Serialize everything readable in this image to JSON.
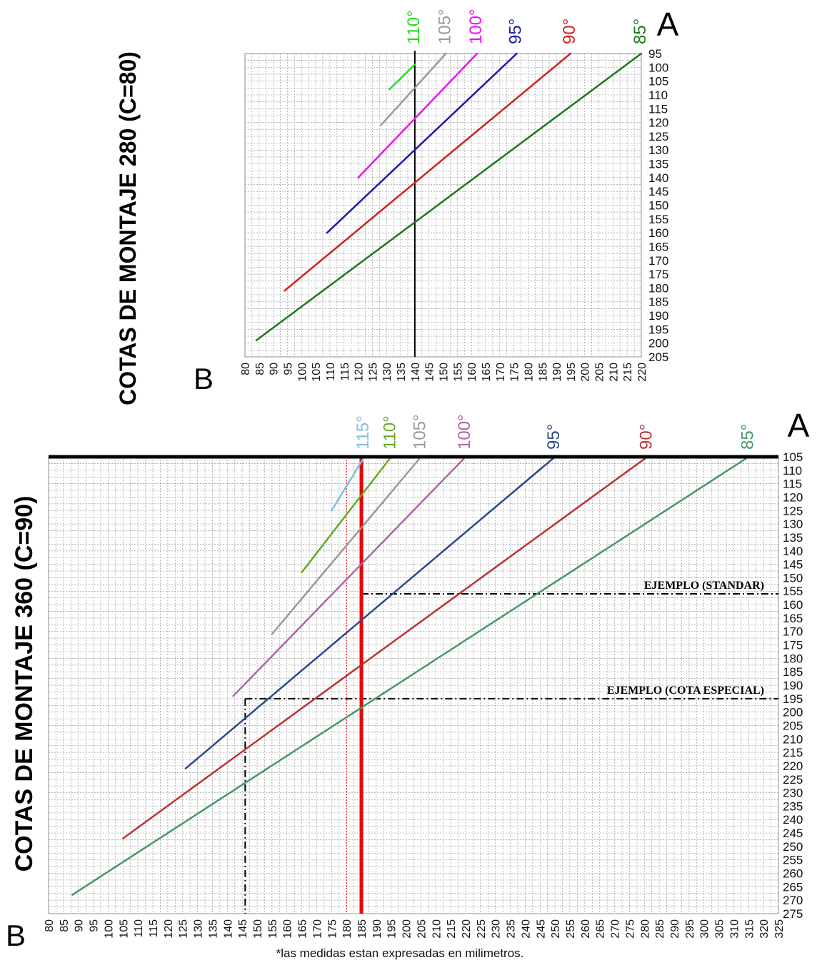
{
  "chart_data": [
    {
      "type": "line",
      "title": "COTAS DE MONTAJE 280 (C=80)",
      "xlabel": "B",
      "ylabel": "A",
      "x_ticks": [
        80,
        85,
        90,
        95,
        100,
        105,
        110,
        115,
        120,
        125,
        130,
        135,
        140,
        145,
        150,
        155,
        160,
        165,
        170,
        175,
        180,
        185,
        190,
        195,
        200,
        205,
        210,
        215,
        220
      ],
      "y_ticks": [
        95,
        100,
        105,
        110,
        115,
        120,
        125,
        130,
        135,
        140,
        145,
        150,
        155,
        160,
        165,
        170,
        175,
        180,
        185,
        190,
        195,
        200,
        205
      ],
      "xlim": [
        80,
        220
      ],
      "ylim": [
        95,
        205
      ],
      "grid": true,
      "series": [
        {
          "name": "110°",
          "color": "#22dd22",
          "x": [
            131,
            140
          ],
          "y": [
            108,
            99
          ]
        },
        {
          "name": "105°",
          "color": "#999999",
          "x": [
            128,
            151
          ],
          "y": [
            121,
            95
          ]
        },
        {
          "name": "100°",
          "color": "#ee11ee",
          "x": [
            120,
            162
          ],
          "y": [
            140,
            95
          ]
        },
        {
          "name": "95°",
          "color": "#1a1aaa",
          "x": [
            109,
            176
          ],
          "y": [
            160,
            95
          ]
        },
        {
          "name": "90°",
          "color": "#cc2222",
          "x": [
            94,
            195
          ],
          "y": [
            181,
            95
          ]
        },
        {
          "name": "85°",
          "color": "#1a7a1a",
          "x": [
            84,
            220
          ],
          "y": [
            199,
            95
          ]
        }
      ],
      "markers": [
        {
          "type": "vline",
          "x": 140,
          "color": "#000000"
        }
      ]
    },
    {
      "type": "line",
      "title": "COTAS DE MONTAJE 360 (C=90)",
      "xlabel": "B",
      "ylabel": "A",
      "x_ticks": [
        80,
        85,
        90,
        95,
        100,
        105,
        110,
        115,
        120,
        125,
        130,
        135,
        140,
        145,
        150,
        155,
        160,
        165,
        170,
        175,
        180,
        185,
        190,
        195,
        200,
        205,
        210,
        215,
        220,
        225,
        230,
        235,
        240,
        245,
        250,
        255,
        260,
        265,
        270,
        275,
        280,
        285,
        290,
        295,
        300,
        305,
        310,
        315,
        320,
        325
      ],
      "y_ticks": [
        105,
        110,
        115,
        120,
        125,
        130,
        135,
        140,
        145,
        150,
        155,
        160,
        165,
        170,
        175,
        180,
        185,
        190,
        195,
        200,
        205,
        210,
        215,
        220,
        225,
        230,
        235,
        240,
        245,
        250,
        255,
        260,
        265,
        270,
        275
      ],
      "xlim": [
        80,
        325
      ],
      "ylim": [
        105,
        275
      ],
      "grid": true,
      "series": [
        {
          "name": "115°",
          "color": "#7fbfdf",
          "x": [
            175,
            186
          ],
          "y": [
            125,
            105
          ]
        },
        {
          "name": "110°",
          "color": "#66aa22",
          "x": [
            165,
            195
          ],
          "y": [
            148,
            105
          ]
        },
        {
          "name": "105°",
          "color": "#999999",
          "x": [
            155,
            205
          ],
          "y": [
            171,
            105
          ]
        },
        {
          "name": "100°",
          "color": "#aa66aa",
          "x": [
            142,
            220
          ],
          "y": [
            194,
            105
          ]
        },
        {
          "name": "95°",
          "color": "#2a4a8a",
          "x": [
            126,
            250
          ],
          "y": [
            221,
            105
          ]
        },
        {
          "name": "90°",
          "color": "#bb3333",
          "x": [
            105,
            281
          ],
          "y": [
            247,
            105
          ]
        },
        {
          "name": "85°",
          "color": "#449966",
          "x": [
            88,
            315
          ],
          "y": [
            268,
            105
          ]
        }
      ],
      "annotations": [
        {
          "text": "EJEMPLO (STANDAR)",
          "y": 156,
          "x_from": 185,
          "x_to": 325
        },
        {
          "text": "EJEMPLO (COTA ESPECIAL)",
          "y": 195,
          "x_from": 146,
          "x_to": 325
        }
      ],
      "markers": [
        {
          "type": "vline",
          "x": 185,
          "color": "#ee0000"
        },
        {
          "type": "vline",
          "x": 180,
          "color": "#ee3333"
        },
        {
          "type": "vline",
          "x": 146,
          "color": "#000000"
        }
      ]
    }
  ],
  "footnote": "*las medidas estan expresadas en milimetros."
}
